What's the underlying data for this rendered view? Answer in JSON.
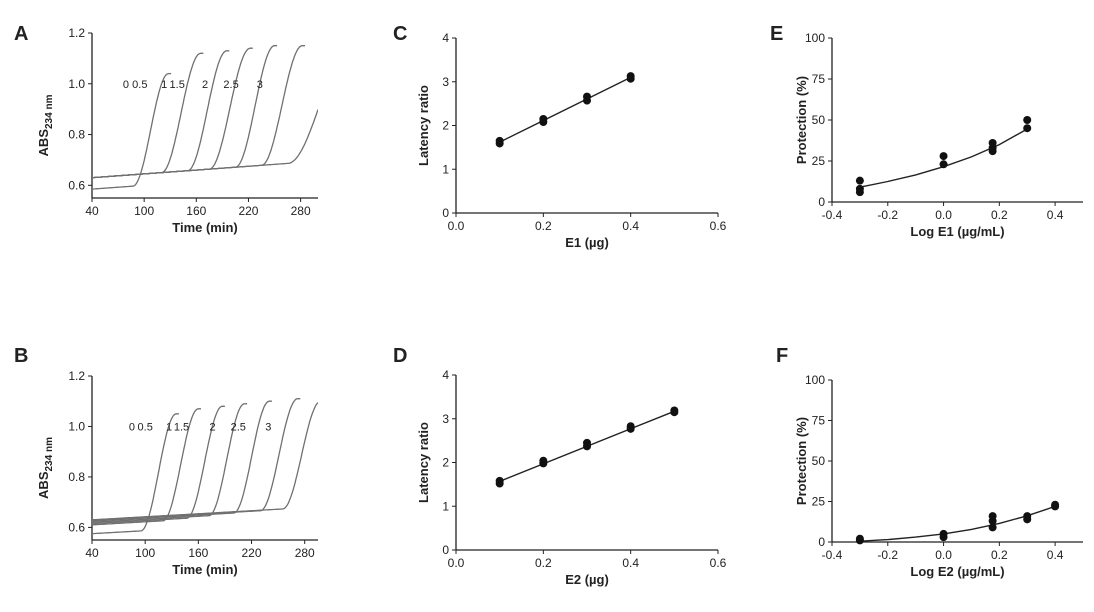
{
  "chart_data": [
    {
      "panel": "A",
      "type": "line",
      "xlabel": "Time (min)",
      "ylabel": "ABS",
      "ylabel_sub": "234 nm",
      "xlim": [
        40,
        300
      ],
      "ylim": [
        0.55,
        1.2
      ],
      "xticks": [
        40,
        100,
        160,
        220,
        280
      ],
      "yticks": [
        0.6,
        0.8,
        1.0,
        1.2
      ],
      "series_color": "#707070",
      "series": [
        {
          "name": "0",
          "onset": 87,
          "end": 128,
          "start": 0.585,
          "base_slope": 0.00025,
          "plateau": 1.04
        },
        {
          "name": "0.5",
          "onset": 120,
          "end": 165,
          "start": 0.63,
          "base_slope": 0.00025,
          "plateau": 1.12
        },
        {
          "name": "1",
          "onset": 150,
          "end": 195,
          "start": 0.63,
          "base_slope": 0.00025,
          "plateau": 1.13
        },
        {
          "name": "1.5",
          "onset": 175,
          "end": 222,
          "start": 0.63,
          "base_slope": 0.00025,
          "plateau": 1.14
        },
        {
          "name": "2",
          "onset": 205,
          "end": 250,
          "start": 0.63,
          "base_slope": 0.00025,
          "plateau": 1.15
        },
        {
          "name": "2.5",
          "onset": 235,
          "end": 282,
          "start": 0.63,
          "base_slope": 0.00025,
          "plateau": 1.15
        },
        {
          "name": "3",
          "onset": 265,
          "end": 340,
          "start": 0.63,
          "base_slope": 0.00025,
          "plateau": 1.16
        }
      ],
      "labels": [
        {
          "text": "0",
          "x": 79,
          "y": 1.0
        },
        {
          "text": "0.5",
          "x": 95,
          "y": 1.0
        },
        {
          "text": "1",
          "x": 123,
          "y": 1.0
        },
        {
          "text": "1.5",
          "x": 138,
          "y": 1.0
        },
        {
          "text": "2",
          "x": 170,
          "y": 1.0
        },
        {
          "text": "2.5",
          "x": 200,
          "y": 1.0
        },
        {
          "text": "3",
          "x": 233,
          "y": 1.0
        }
      ]
    },
    {
      "panel": "B",
      "type": "line",
      "xlabel": "Time (min)",
      "ylabel": "ABS",
      "ylabel_sub": "234 nm",
      "xlim": [
        40,
        295
      ],
      "ylim": [
        0.55,
        1.2
      ],
      "xticks": [
        40,
        100,
        160,
        220,
        280
      ],
      "yticks": [
        0.6,
        0.8,
        1.0,
        1.2
      ],
      "series_color": "#707070",
      "series": [
        {
          "name": "0",
          "onset": 95,
          "end": 135,
          "start": 0.575,
          "base_slope": 0.0002,
          "plateau": 1.05
        },
        {
          "name": "0.5",
          "onset": 120,
          "end": 160,
          "start": 0.61,
          "base_slope": 0.0002,
          "plateau": 1.07
        },
        {
          "name": "1",
          "onset": 147,
          "end": 187,
          "start": 0.615,
          "base_slope": 0.0002,
          "plateau": 1.08
        },
        {
          "name": "1.5",
          "onset": 172,
          "end": 212,
          "start": 0.62,
          "base_slope": 0.0002,
          "plateau": 1.09
        },
        {
          "name": "2",
          "onset": 200,
          "end": 240,
          "start": 0.625,
          "base_slope": 0.0002,
          "plateau": 1.1
        },
        {
          "name": "2.5",
          "onset": 230,
          "end": 272,
          "start": 0.628,
          "base_slope": 0.0002,
          "plateau": 1.11
        },
        {
          "name": "3",
          "onset": 255,
          "end": 298,
          "start": 0.63,
          "base_slope": 0.0002,
          "plateau": 1.1
        }
      ],
      "labels": [
        {
          "text": "0",
          "x": 85,
          "y": 1.0
        },
        {
          "text": "0.5",
          "x": 100,
          "y": 1.0
        },
        {
          "text": "1",
          "x": 127,
          "y": 1.0
        },
        {
          "text": "1.5",
          "x": 141,
          "y": 1.0
        },
        {
          "text": "2",
          "x": 176,
          "y": 1.0
        },
        {
          "text": "2.5",
          "x": 205,
          "y": 1.0
        },
        {
          "text": "3",
          "x": 239,
          "y": 1.0
        }
      ]
    },
    {
      "panel": "C",
      "type": "scatter",
      "xlabel": "E1 (µg)",
      "ylabel": "Latency ratio",
      "xlim": [
        0,
        0.6
      ],
      "ylim": [
        0,
        4
      ],
      "xticks": [
        "0.0",
        "0.2",
        "0.4",
        "0.6"
      ],
      "yticks": [
        "0",
        "1",
        "2",
        "3",
        "4"
      ],
      "points": [
        [
          0.1,
          1.59
        ],
        [
          0.1,
          1.65
        ],
        [
          0.2,
          2.08
        ],
        [
          0.2,
          2.15
        ],
        [
          0.3,
          2.57
        ],
        [
          0.3,
          2.66
        ],
        [
          0.4,
          3.07
        ],
        [
          0.4,
          3.13
        ]
      ],
      "fit": [
        [
          0.1,
          1.62
        ],
        [
          0.4,
          3.1
        ]
      ]
    },
    {
      "panel": "D",
      "type": "scatter",
      "xlabel": "E2 (µg)",
      "ylabel": "Latency ratio",
      "xlim": [
        0,
        0.6
      ],
      "ylim": [
        0,
        4
      ],
      "xticks": [
        "0.0",
        "0.2",
        "0.4",
        "0.6"
      ],
      "yticks": [
        "0",
        "1",
        "2",
        "3",
        "4"
      ],
      "points": [
        [
          0.1,
          1.52
        ],
        [
          0.1,
          1.58
        ],
        [
          0.2,
          1.98
        ],
        [
          0.2,
          2.04
        ],
        [
          0.3,
          2.37
        ],
        [
          0.3,
          2.45
        ],
        [
          0.4,
          2.77
        ],
        [
          0.4,
          2.83
        ],
        [
          0.5,
          3.15
        ],
        [
          0.5,
          3.19
        ]
      ],
      "fit": [
        [
          0.1,
          1.57
        ],
        [
          0.5,
          3.17
        ]
      ]
    },
    {
      "panel": "E",
      "type": "scatter",
      "xlabel": "Log E1 (µg/mL)",
      "ylabel": "Protection (%)",
      "xlim": [
        -0.4,
        0.5
      ],
      "ylim": [
        0,
        100
      ],
      "xticks": [
        "-0.4",
        "-0.2",
        "0.0",
        "0.2",
        "0.4"
      ],
      "yticks": [
        "0",
        "25",
        "50",
        "75",
        "100"
      ],
      "points": [
        [
          -0.3,
          6
        ],
        [
          -0.3,
          8
        ],
        [
          -0.3,
          13
        ],
        [
          0.0,
          23
        ],
        [
          0.0,
          28
        ],
        [
          0.176,
          31
        ],
        [
          0.176,
          33
        ],
        [
          0.176,
          36
        ],
        [
          0.3,
          45
        ],
        [
          0.3,
          50
        ]
      ],
      "fit": [
        [
          -0.3,
          9
        ],
        [
          -0.2,
          12.5
        ],
        [
          -0.1,
          16.5
        ],
        [
          0.0,
          21.5
        ],
        [
          0.1,
          27.5
        ],
        [
          0.2,
          35
        ],
        [
          0.3,
          44.5
        ]
      ]
    },
    {
      "panel": "F",
      "type": "scatter",
      "xlabel": "Log E2 (µg/mL)",
      "ylabel": "Protection (%)",
      "xlim": [
        -0.4,
        0.5
      ],
      "ylim": [
        0,
        100
      ],
      "xticks": [
        "-0.4",
        "-0.2",
        "0.0",
        "0.2",
        "0.4"
      ],
      "yticks": [
        "0",
        "25",
        "50",
        "75",
        "100"
      ],
      "points": [
        [
          -0.3,
          1
        ],
        [
          -0.3,
          2
        ],
        [
          0.0,
          3
        ],
        [
          0.0,
          5
        ],
        [
          0.176,
          9
        ],
        [
          0.176,
          13
        ],
        [
          0.176,
          16
        ],
        [
          0.3,
          14
        ],
        [
          0.3,
          16
        ],
        [
          0.4,
          22
        ],
        [
          0.4,
          23
        ]
      ],
      "fit": [
        [
          -0.3,
          0.5
        ],
        [
          -0.2,
          1.5
        ],
        [
          -0.1,
          3
        ],
        [
          0.0,
          5
        ],
        [
          0.1,
          7.8
        ],
        [
          0.2,
          11.5
        ],
        [
          0.3,
          16.2
        ],
        [
          0.4,
          22
        ]
      ]
    }
  ]
}
